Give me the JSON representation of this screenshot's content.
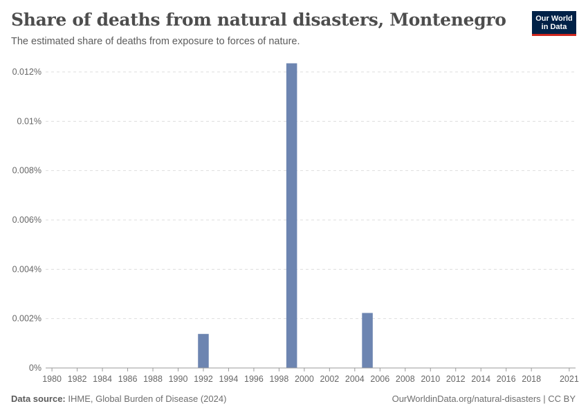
{
  "header": {
    "title": "Share of deaths from natural disasters, Montenegro",
    "subtitle": "The estimated share of deaths from exposure to forces of nature."
  },
  "logo": {
    "line1": "Our World",
    "line2": "in Data"
  },
  "footer": {
    "source_label": "Data source:",
    "source_text": "IHME, Global Burden of Disease (2024)",
    "right_text": "OurWorldinData.org/natural-disasters | CC BY"
  },
  "colors": {
    "bar": "#6d85b1",
    "grid": "#dddddd",
    "axis": "#999999",
    "logo_bg": "#002147",
    "logo_accent": "#ce261e"
  },
  "chart_data": {
    "type": "bar",
    "title": "Share of deaths from natural disasters, Montenegro",
    "subtitle": "The estimated share of deaths from exposure to forces of nature.",
    "xlabel": "",
    "ylabel": "",
    "xlim": [
      1980,
      2021
    ],
    "ylim": [
      0,
      0.012
    ],
    "y_unit": "%",
    "grid": "horizontal-dashed",
    "x_ticks": [
      "1980",
      "1982",
      "1984",
      "1986",
      "1988",
      "1990",
      "1992",
      "1994",
      "1996",
      "1998",
      "2000",
      "2002",
      "2004",
      "2006",
      "2008",
      "2010",
      "2012",
      "2014",
      "2016",
      "2018",
      "2021"
    ],
    "y_ticks": [
      "0%",
      "0.002%",
      "0.004%",
      "0.006%",
      "0.008%",
      "0.01%",
      "0.012%"
    ],
    "series": [
      {
        "x": [
          1992,
          1999,
          2005
        ],
        "values": [
          0.00138,
          0.01235,
          0.00223
        ]
      }
    ]
  }
}
